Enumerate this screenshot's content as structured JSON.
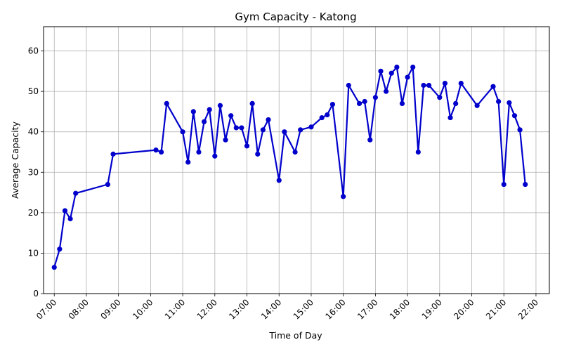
{
  "chart_data": {
    "type": "line",
    "title": "Gym Capacity - Katong",
    "xlabel": "Time of Day",
    "ylabel": "Average Capacity",
    "grid": true,
    "line_color": "#0000cc",
    "xlim": [
      "06:40",
      "22:25"
    ],
    "ylim": [
      0,
      66
    ],
    "x_ticks": [
      "07:00",
      "08:00",
      "09:00",
      "10:00",
      "11:00",
      "12:00",
      "13:00",
      "14:00",
      "15:00",
      "16:00",
      "17:00",
      "18:00",
      "19:00",
      "20:00",
      "21:00",
      "22:00"
    ],
    "y_ticks": [
      0,
      10,
      20,
      30,
      40,
      50,
      60
    ],
    "series": [
      {
        "x": [
          "07:00",
          "07:10",
          "07:20",
          "07:30",
          "07:40",
          "08:40",
          "08:50",
          "10:10",
          "10:20",
          "10:30",
          "11:00",
          "11:10",
          "11:20",
          "11:30",
          "11:40",
          "11:50",
          "12:00",
          "12:10",
          "12:20",
          "12:30",
          "12:40",
          "12:50",
          "13:00",
          "13:10",
          "13:20",
          "13:30",
          "13:40",
          "14:00",
          "14:10",
          "14:30",
          "14:40",
          "15:00",
          "15:20",
          "15:30",
          "15:40",
          "16:00",
          "16:10",
          "16:30",
          "16:40",
          "16:50",
          "17:00",
          "17:10",
          "17:20",
          "17:30",
          "17:40",
          "17:50",
          "18:00",
          "18:10",
          "18:20",
          "18:30",
          "18:40",
          "19:00",
          "19:10",
          "19:20",
          "19:30",
          "19:40",
          "20:10",
          "20:40",
          "20:50",
          "21:00",
          "21:10",
          "21:20",
          "21:30",
          "21:40"
        ],
        "y": [
          6.5,
          11,
          20.5,
          18.5,
          24.8,
          27,
          34.5,
          35.5,
          35,
          47,
          40,
          32.5,
          45,
          35,
          42.5,
          45.5,
          34,
          46.5,
          38,
          44,
          41,
          41,
          36.5,
          47,
          34.5,
          40.5,
          43,
          28,
          40,
          35,
          40.5,
          41.2,
          43.5,
          44.2,
          46.8,
          24,
          51.5,
          47,
          47.5,
          38,
          48.5,
          55,
          50,
          54.5,
          56,
          47,
          53.5,
          56,
          35,
          51.5,
          51.5,
          48.5,
          52,
          43.5,
          47,
          52,
          46.5,
          51.2,
          47.5,
          27,
          47.2,
          44,
          40.5,
          27
        ]
      }
    ]
  }
}
